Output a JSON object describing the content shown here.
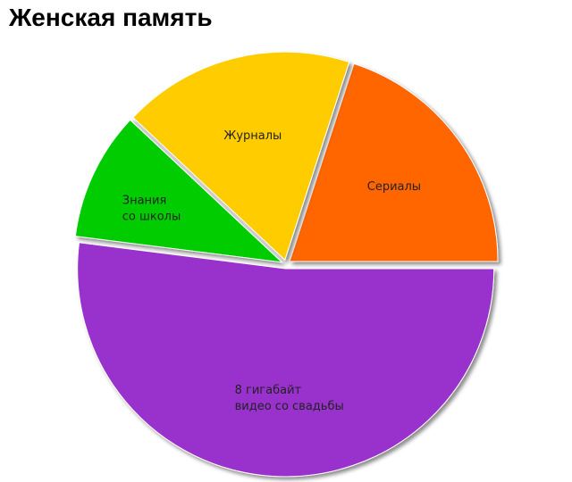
{
  "chart_data": {
    "type": "pie",
    "title": "Женская память",
    "slices": [
      {
        "label_lines": [
          "Сериалы"
        ],
        "value": 20,
        "color": "#ff6600"
      },
      {
        "label_lines": [
          "Журналы"
        ],
        "value": 18,
        "color": "#ffcc00"
      },
      {
        "label_lines": [
          "Знания",
          "со школы"
        ],
        "value": 10,
        "color": "#00cc00"
      },
      {
        "label_lines": [
          "8 гигабайт",
          "видео со свадьбы"
        ],
        "value": 52,
        "color": "#9933cc"
      }
    ],
    "legend": "none",
    "exploded": true
  }
}
